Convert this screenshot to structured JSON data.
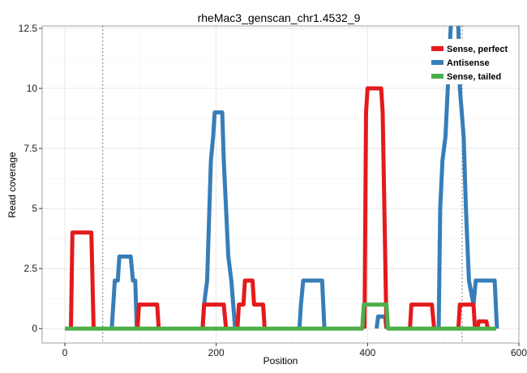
{
  "chart_data": {
    "type": "line",
    "title": "rheMac3_genscan_chr1.4532_9",
    "xlabel": "Position",
    "ylabel": "Read coverage",
    "xlim": [
      -30,
      600
    ],
    "ylim": [
      -0.6,
      12.6
    ],
    "x_ticks": [
      0,
      200,
      400,
      600
    ],
    "x_tick_labels": [
      "0",
      "200",
      "400",
      "600"
    ],
    "y_ticks": [
      0,
      2.5,
      5,
      7.5,
      10,
      12.5
    ],
    "y_tick_labels": [
      "0",
      "2.5",
      "5",
      "7.5",
      "10",
      "12.5"
    ],
    "grid": true,
    "legend_position": "top-right",
    "vlines": [
      50,
      525
    ],
    "series": [
      {
        "name": "Sense, perfect",
        "color": "#e41a1c",
        "segments": [
          [
            [
              8,
              0
            ],
            [
              10,
              4
            ],
            [
              35,
              4
            ],
            [
              38,
              0
            ]
          ],
          [
            [
              96,
              0
            ],
            [
              98,
              1
            ],
            [
              122,
              1
            ],
            [
              124,
              0
            ]
          ],
          [
            [
              182,
              0
            ],
            [
              184,
              1
            ],
            [
              210,
              1
            ],
            [
              213,
              0
            ]
          ],
          [
            [
              228,
              0
            ],
            [
              230,
              1
            ],
            [
              236,
              1
            ],
            [
              238,
              2
            ],
            [
              248,
              2
            ],
            [
              250,
              1
            ],
            [
              262,
              1
            ],
            [
              264,
              0
            ]
          ],
          [
            [
              396,
              0
            ],
            [
              398,
              9
            ],
            [
              400,
              10
            ],
            [
              418,
              10
            ],
            [
              420,
              9
            ],
            [
              425,
              0
            ]
          ],
          [
            [
              456,
              0
            ],
            [
              458,
              1
            ],
            [
              485,
              1
            ],
            [
              488,
              0
            ]
          ],
          [
            [
              520,
              0
            ],
            [
              522,
              1
            ],
            [
              540,
              1
            ],
            [
              542,
              0
            ]
          ],
          [
            [
              545,
              0
            ],
            [
              547,
              0.3
            ],
            [
              557,
              0.3
            ],
            [
              559,
              0
            ]
          ]
        ]
      },
      {
        "name": "Antisense",
        "color": "#377eb8",
        "segments": [
          [
            [
              62,
              0
            ],
            [
              64,
              1
            ],
            [
              66,
              2
            ],
            [
              70,
              2
            ],
            [
              72,
              3
            ],
            [
              87,
              3
            ],
            [
              90,
              2
            ],
            [
              93,
              2
            ],
            [
              95,
              0
            ]
          ],
          [
            [
              182,
              0
            ],
            [
              184,
              1
            ],
            [
              188,
              2
            ],
            [
              191,
              5
            ],
            [
              193,
              7
            ],
            [
              196,
              8
            ],
            [
              198,
              9
            ],
            [
              208,
              9
            ],
            [
              210,
              7
            ],
            [
              213,
              5
            ],
            [
              216,
              3
            ],
            [
              220,
              2
            ],
            [
              225,
              0
            ]
          ],
          [
            [
              310,
              0
            ],
            [
              312,
              1
            ],
            [
              315,
              2
            ],
            [
              340,
              2
            ],
            [
              343,
              0
            ]
          ],
          [
            [
              412,
              0
            ],
            [
              414,
              0.5
            ],
            [
              423,
              0.5
            ],
            [
              425,
              0
            ]
          ],
          [
            [
              494,
              0
            ],
            [
              496,
              5
            ],
            [
              499,
              7
            ],
            [
              503,
              8
            ],
            [
              506,
              10
            ],
            [
              510,
              12.6
            ]
          ],
          [
            [
              520,
              12.6
            ],
            [
              522,
              10
            ],
            [
              527,
              8
            ],
            [
              530,
              5
            ],
            [
              534,
              2
            ],
            [
              540,
              1
            ],
            [
              543,
              2
            ],
            [
              568,
              2
            ],
            [
              571,
              0
            ]
          ]
        ]
      },
      {
        "name": "Sense, tailed",
        "color": "#4daf4a",
        "segments": [
          [
            [
              0,
              0
            ],
            [
              393,
              0
            ],
            [
              395,
              1
            ],
            [
              425,
              1
            ],
            [
              427,
              0
            ],
            [
              570,
              0
            ]
          ]
        ]
      }
    ]
  }
}
